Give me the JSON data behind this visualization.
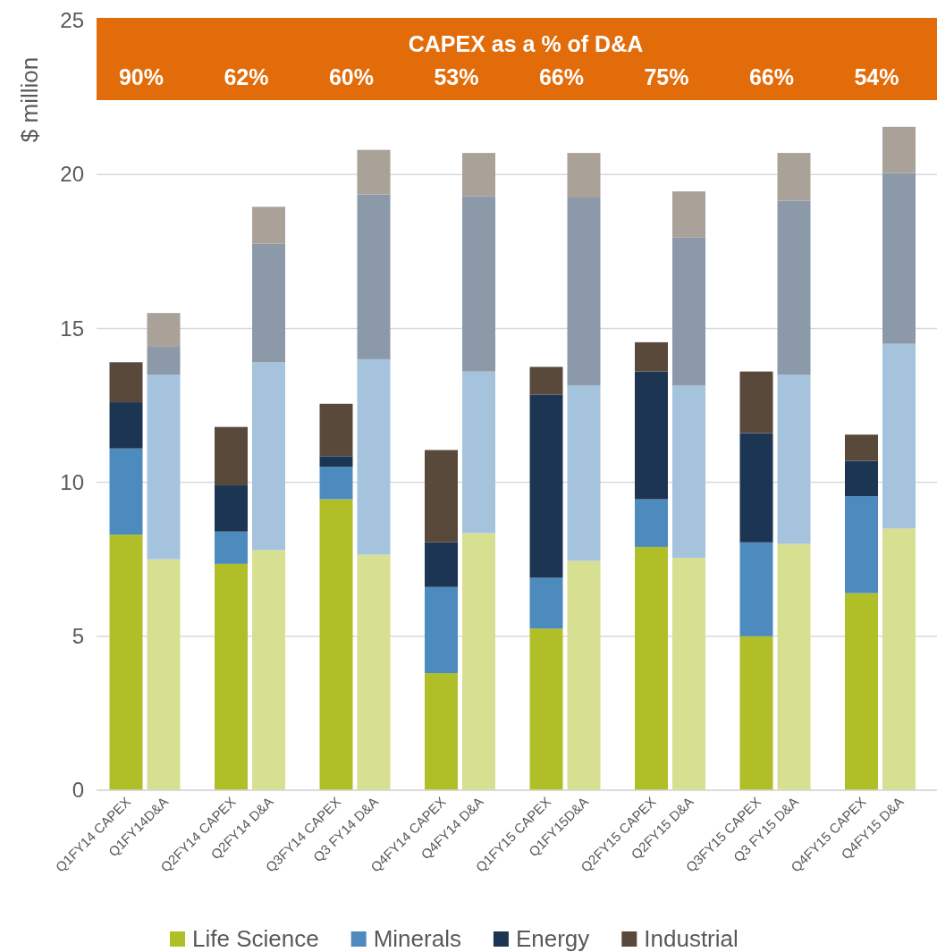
{
  "chart_data": {
    "type": "bar",
    "stacked": true,
    "ylabel": "$ million",
    "categories": [
      "Q1FY14 CAPEX",
      "Q1FY14D&A",
      "Q2FY14 CAPEX",
      "Q2FY14 D&A",
      "Q3FY14 CAPEX",
      "Q3 FY14 D&A",
      "Q4FY14 CAPEX",
      "Q4FY14 D&A",
      "Q1FY15 CAPEX",
      "Q1FY15D&A",
      "Q2FY15 CAPEX",
      "Q2FY15 D&A",
      "Q3FY15 CAPEX",
      "Q3 FY15 D&A",
      "Q4FY15 CAPEX",
      "Q4FY15 D&A"
    ],
    "series": [
      {
        "name": "Life Science",
        "color": "#b0bf28",
        "colors": [
          "#b0bf28",
          "#d7df91",
          "#b0bf28",
          "#d7df91",
          "#b0bf28",
          "#d7df91",
          "#b0bf28",
          "#d7df91",
          "#b0bf28",
          "#d7df91",
          "#b0bf28",
          "#d7df91",
          "#b0bf28",
          "#d7df91",
          "#b0bf28",
          "#d7df91"
        ],
        "values": [
          8.3,
          7.5,
          7.35,
          7.8,
          9.45,
          7.65,
          3.8,
          8.35,
          5.25,
          7.45,
          7.9,
          7.55,
          5.0,
          8.0,
          6.4,
          8.5
        ]
      },
      {
        "name": "Minerals",
        "color": "#4d8bbf",
        "colors": [
          "#4d8bbf",
          "#a6c3de",
          "#4d8bbf",
          "#a6c3de",
          "#4d8bbf",
          "#a6c3de",
          "#4d8bbf",
          "#a6c3de",
          "#4d8bbf",
          "#a6c3de",
          "#4d8bbf",
          "#a6c3de",
          "#4d8bbf",
          "#a6c3de",
          "#4d8bbf",
          "#a6c3de"
        ],
        "values": [
          2.8,
          6.0,
          1.05,
          6.1,
          1.05,
          6.35,
          2.8,
          5.25,
          1.65,
          5.7,
          1.55,
          5.6,
          3.05,
          5.5,
          3.15,
          6.0
        ]
      },
      {
        "name": "Energy",
        "color": "#1c3553",
        "colors": [
          "#1c3553",
          "#8b99a9",
          "#1c3553",
          "#8b99a9",
          "#1c3553",
          "#8b99a9",
          "#1c3553",
          "#8b99a9",
          "#1c3553",
          "#8b99a9",
          "#1c3553",
          "#8b99a9",
          "#1c3553",
          "#8b99a9",
          "#1c3553",
          "#8b99a9"
        ],
        "values": [
          1.5,
          0.9,
          1.5,
          3.85,
          0.35,
          5.35,
          1.45,
          5.7,
          5.95,
          6.1,
          4.15,
          4.8,
          3.55,
          5.65,
          1.15,
          5.55
        ]
      },
      {
        "name": "Industrial",
        "color": "#58493b",
        "colors": [
          "#58493b",
          "#aaa199",
          "#58493b",
          "#aaa199",
          "#58493b",
          "#aaa199",
          "#58493b",
          "#aaa199",
          "#58493b",
          "#aaa199",
          "#58493b",
          "#aaa199",
          "#58493b",
          "#aaa199",
          "#58493b",
          "#aaa199"
        ],
        "values": [
          1.3,
          1.1,
          1.9,
          1.2,
          1.7,
          1.45,
          3.0,
          1.4,
          0.9,
          1.45,
          0.95,
          1.5,
          2.0,
          1.55,
          0.85,
          1.5
        ]
      }
    ],
    "ylim": [
      0,
      25
    ],
    "yticks": [
      0,
      5,
      10,
      15,
      20,
      25
    ],
    "grid": "y",
    "legend": "bottom",
    "annotations": [
      "CAPEX as a % of D&A",
      "90%",
      "62%",
      "60%",
      "53%",
      "66%",
      "75%",
      "66%",
      "54%"
    ]
  }
}
